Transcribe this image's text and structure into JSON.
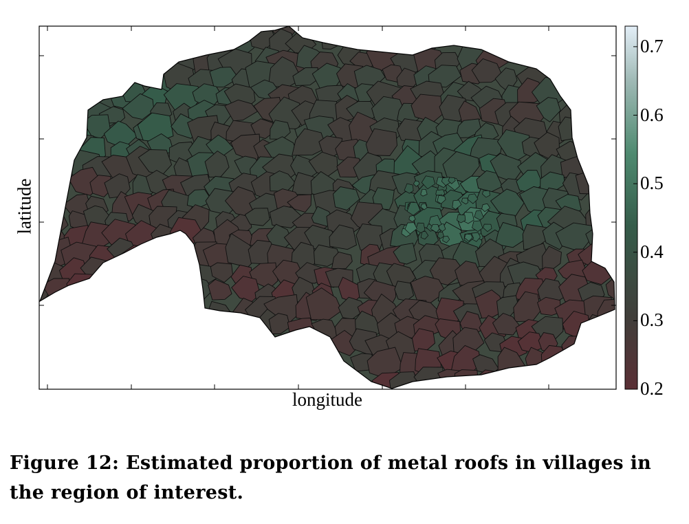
{
  "chart": {
    "type": "choropleth map",
    "xlabel": "longitude",
    "ylabel": "latitude",
    "colorbar": {
      "min": 0.2,
      "max": 0.73,
      "ticks": [
        "0.7",
        "0.6",
        "0.5",
        "0.4",
        "0.3",
        "0.2"
      ],
      "tick_values": [
        0.7,
        0.6,
        0.5,
        0.4,
        0.3,
        0.2
      ],
      "colors": [
        "#5a2f35",
        "#403e3a",
        "#355c4a",
        "#4f8a70",
        "#9fb9b5",
        "#e3eef7"
      ]
    }
  },
  "caption": {
    "label": "Figure 12:",
    "text": "Estimated proportion of metal roofs in villages in the region of interest."
  }
}
